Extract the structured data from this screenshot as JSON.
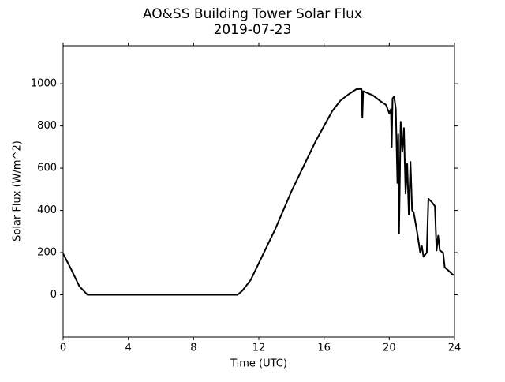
{
  "chart_data": {
    "type": "line",
    "title": "AO&SS Building Tower Solar Flux",
    "subtitle": "2019-07-23",
    "x_label": "Time (UTC)",
    "y_label": "Solar Flux (W/m^2)",
    "color": "#000000",
    "x": [
      0,
      0.5,
      1,
      1.5,
      10.7,
      11,
      11.5,
      12,
      12.5,
      13,
      13.5,
      14,
      14.5,
      15,
      15.5,
      16,
      16.5,
      17,
      17.5,
      18,
      18.3,
      18.35,
      18.4,
      19,
      19.5,
      19.8,
      20,
      20.1,
      20.15,
      20.2,
      20.3,
      20.4,
      20.5,
      20.55,
      20.6,
      20.7,
      20.8,
      20.9,
      21,
      21.1,
      21.2,
      21.3,
      21.4,
      21.5,
      21.7,
      21.9,
      22,
      22.1,
      22.3,
      22.4,
      22.6,
      22.8,
      22.9,
      23,
      23.1,
      23.3,
      23.4,
      23.7,
      23.9,
      24
    ],
    "y": [
      195,
      120,
      40,
      0,
      0,
      20,
      70,
      150,
      230,
      310,
      400,
      490,
      570,
      650,
      730,
      800,
      870,
      920,
      950,
      975,
      975,
      840,
      965,
      945,
      915,
      900,
      860,
      880,
      700,
      930,
      940,
      880,
      530,
      760,
      290,
      820,
      680,
      790,
      480,
      620,
      380,
      630,
      400,
      390,
      300,
      200,
      230,
      180,
      200,
      455,
      440,
      420,
      210,
      280,
      210,
      200,
      130,
      110,
      95,
      95
    ],
    "xlim": [
      0,
      24
    ],
    "xticks": [
      0,
      4,
      8,
      12,
      16,
      20,
      24
    ],
    "ylim": [
      -200,
      1180
    ],
    "yticks": [
      0,
      200,
      400,
      600,
      800,
      1000
    ]
  }
}
